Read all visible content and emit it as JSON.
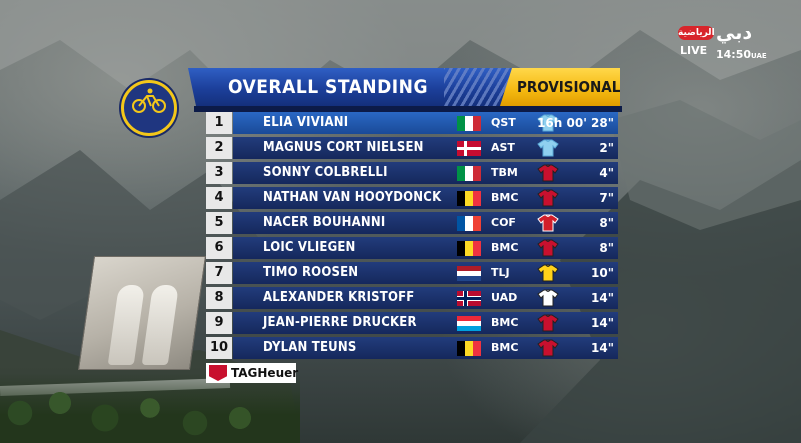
{
  "broadcaster": {
    "channel_arabic": "الرياضية",
    "channel_logo_text": "دبي",
    "live_label": "LIVE",
    "clock": "14:50",
    "timezone": "UAE"
  },
  "header": {
    "title": "OVERALL STANDING",
    "status": "PROVISIONAL"
  },
  "sponsor": {
    "name": "TAGHeuer"
  },
  "colors": {
    "header_blue": "#1c3f9a",
    "header_yellow": "#f4b810",
    "row_bg": "#15285c",
    "leader_row_bg": "#1a4a98"
  },
  "standings": [
    {
      "pos": "1",
      "name": "ELIA VIVIANI",
      "flag": "italy",
      "team": "QST",
      "jersey": "light-blue",
      "time": "16h 00' 28\""
    },
    {
      "pos": "2",
      "name": "MAGNUS CORT NIELSEN",
      "flag": "denmark",
      "team": "AST",
      "jersey": "light-blue",
      "time": "2\""
    },
    {
      "pos": "3",
      "name": "SONNY COLBRELLI",
      "flag": "italy",
      "team": "TBM",
      "jersey": "red",
      "time": "4\""
    },
    {
      "pos": "4",
      "name": "NATHAN VAN HOOYDONCK",
      "flag": "belgium",
      "team": "BMC",
      "jersey": "red",
      "time": "7\""
    },
    {
      "pos": "5",
      "name": "NACER BOUHANNI",
      "flag": "france",
      "team": "COF",
      "jersey": "red-white",
      "time": "8\""
    },
    {
      "pos": "6",
      "name": "LOIC VLIEGEN",
      "flag": "belgium",
      "team": "BMC",
      "jersey": "red",
      "time": "8\""
    },
    {
      "pos": "7",
      "name": "TIMO ROOSEN",
      "flag": "netherlands",
      "team": "TLJ",
      "jersey": "yellow",
      "time": "10\""
    },
    {
      "pos": "8",
      "name": "ALEXANDER KRISTOFF",
      "flag": "norway",
      "team": "UAD",
      "jersey": "white",
      "time": "14\""
    },
    {
      "pos": "9",
      "name": "JEAN-PIERRE DRUCKER",
      "flag": "luxembourg",
      "team": "BMC",
      "jersey": "red",
      "time": "14\""
    },
    {
      "pos": "10",
      "name": "DYLAN TEUNS",
      "flag": "belgium",
      "team": "BMC",
      "jersey": "red",
      "time": "14\""
    }
  ]
}
